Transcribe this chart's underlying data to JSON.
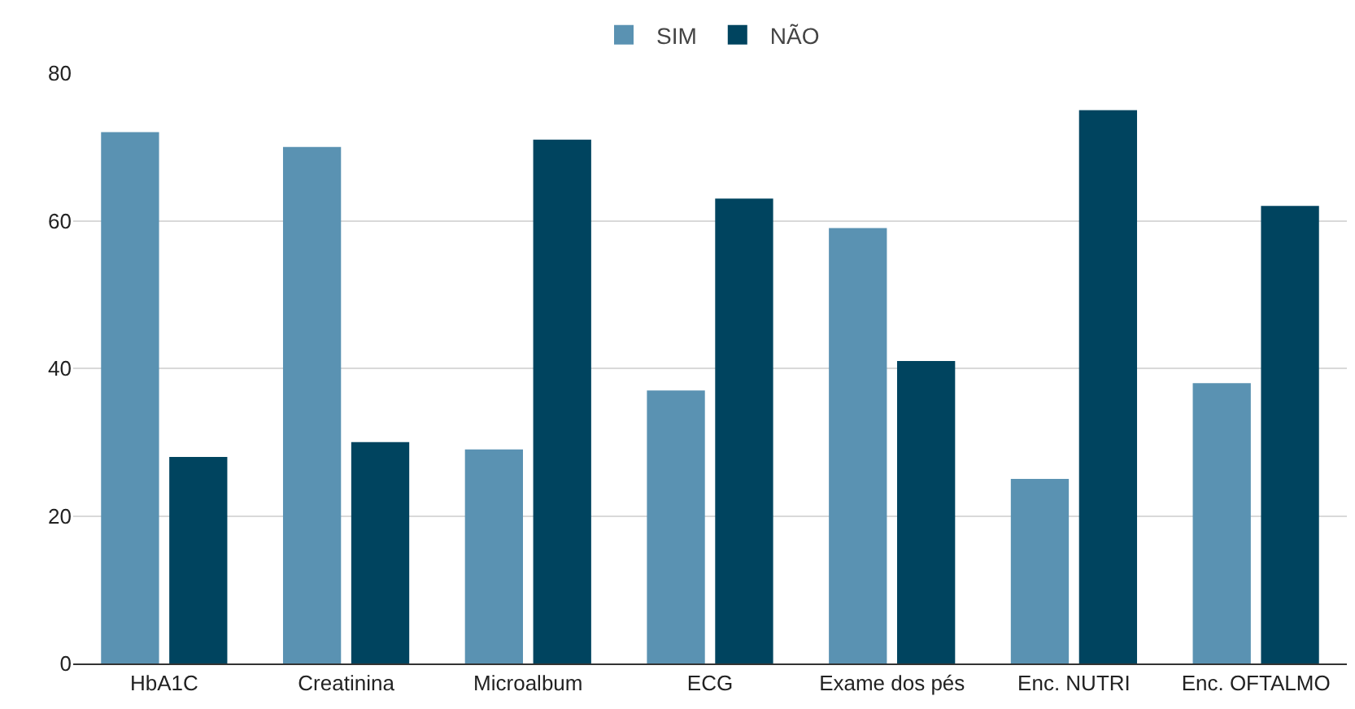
{
  "chart_data": {
    "type": "bar",
    "categories": [
      "HbA1C",
      "Creatinina",
      "Microalbum",
      "ECG",
      "Exame dos pés",
      "Enc. NUTRI",
      "Enc. OFTALMO"
    ],
    "series": [
      {
        "name": "SIM",
        "color": "#5a92b2",
        "values": [
          72,
          70,
          29,
          37,
          59,
          25,
          38
        ]
      },
      {
        "name": "NÃO",
        "color": "#00445f",
        "values": [
          28,
          30,
          71,
          63,
          41,
          75,
          62
        ]
      }
    ],
    "ylim": [
      0,
      80
    ],
    "yticks": [
      0,
      20,
      40,
      60,
      80
    ],
    "grid": "y",
    "legend": "top"
  }
}
